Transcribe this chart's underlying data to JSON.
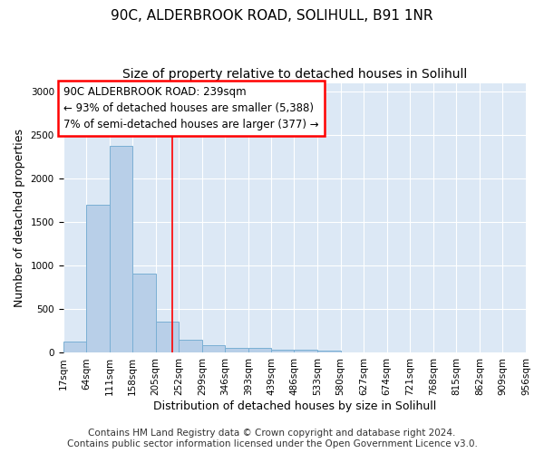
{
  "title1": "90C, ALDERBROOK ROAD, SOLIHULL, B91 1NR",
  "title2": "Size of property relative to detached houses in Solihull",
  "xlabel": "Distribution of detached houses by size in Solihull",
  "ylabel": "Number of detached properties",
  "bar_edges": [
    17,
    64,
    111,
    158,
    205,
    252,
    299,
    346,
    393,
    439,
    486,
    533,
    580,
    627,
    674,
    721,
    768,
    815,
    862,
    909,
    956
  ],
  "bar_heights": [
    130,
    1700,
    2380,
    910,
    360,
    155,
    90,
    60,
    55,
    40,
    35,
    30,
    0,
    0,
    0,
    0,
    0,
    0,
    0,
    0
  ],
  "bar_color": "#b8cfe8",
  "bar_edgecolor": "#7aafd4",
  "property_size": 239,
  "annotation_line1": "90C ALDERBROOK ROAD: 239sqm",
  "annotation_line2": "← 93% of detached houses are smaller (5,388)",
  "annotation_line3": "7% of semi-detached houses are larger (377) →",
  "annotation_box_color": "white",
  "annotation_box_edgecolor": "red",
  "vline_color": "red",
  "ylim": [
    0,
    3100
  ],
  "yticks": [
    0,
    500,
    1000,
    1500,
    2000,
    2500,
    3000
  ],
  "background_color": "#dce8f5",
  "footer_text": "Contains HM Land Registry data © Crown copyright and database right 2024.\nContains public sector information licensed under the Open Government Licence v3.0.",
  "title1_fontsize": 11,
  "title2_fontsize": 10,
  "xlabel_fontsize": 9,
  "ylabel_fontsize": 9,
  "tick_fontsize": 7.5,
  "annotation_fontsize": 8.5,
  "footer_fontsize": 7.5
}
